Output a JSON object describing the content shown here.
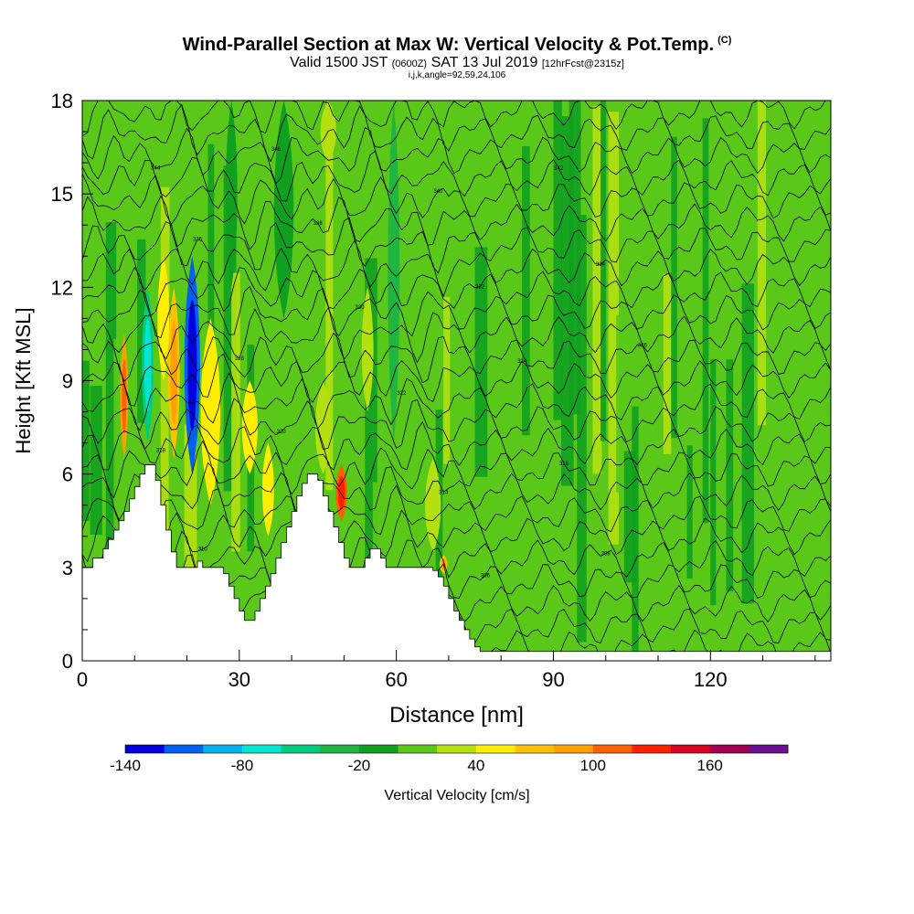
{
  "header": {
    "title": "Wind-Parallel Section at Max W: Vertical Velocity & Pot.Temp.",
    "copyright": "(C)",
    "valid_prefix": "Valid 1500 JST",
    "utc": "(0600Z)",
    "valid_date": "SAT 13 Jul 2019",
    "forecast": "[12hrFcst@2315z]",
    "params": "i,j,k,angle=92,59,24,106"
  },
  "chart_data": {
    "type": "heatmap",
    "title": "Wind-Parallel Section at Max W: Vertical Velocity & Pot.Temp.",
    "xlabel": "Distance [nm]",
    "ylabel": "Height [Kft MSL]",
    "xlim": [
      0,
      143
    ],
    "ylim": [
      0,
      18
    ],
    "x_ticks": [
      "0",
      "30",
      "60",
      "90",
      "120"
    ],
    "y_ticks": [
      "0",
      "3",
      "6",
      "9",
      "12",
      "15",
      "18"
    ],
    "terrain": {
      "x": [
        0,
        1,
        2,
        4,
        5,
        6,
        7,
        8,
        9,
        10,
        11,
        12,
        13,
        14,
        15,
        16,
        17,
        18,
        19,
        20,
        21,
        22,
        23,
        24,
        25,
        26,
        27,
        28,
        29,
        30,
        31,
        32,
        33,
        34,
        35,
        36,
        37,
        38,
        39,
        40,
        41,
        42,
        43,
        44,
        45,
        46,
        47,
        48,
        49,
        50,
        51,
        52,
        53,
        54,
        55,
        56,
        57,
        58,
        59,
        60,
        61,
        62,
        63,
        64,
        65,
        66,
        67,
        68,
        69,
        70,
        71,
        72,
        73,
        74,
        75,
        76,
        77,
        143
      ],
      "y": [
        3.0,
        3.0,
        3.3,
        3.6,
        3.9,
        4.2,
        4.5,
        4.8,
        5.2,
        5.6,
        6.0,
        6.3,
        6.3,
        5.8,
        5.0,
        4.2,
        3.5,
        3.0,
        3.0,
        3.0,
        3.0,
        3.2,
        3.0,
        3.0,
        3.0,
        3.0,
        2.8,
        2.4,
        2.0,
        1.6,
        1.3,
        1.3,
        1.6,
        2.0,
        2.4,
        2.8,
        3.3,
        3.8,
        4.3,
        4.8,
        5.3,
        5.7,
        6.0,
        6.0,
        5.8,
        5.3,
        4.8,
        4.3,
        3.8,
        3.3,
        3.0,
        3.0,
        3.0,
        3.3,
        3.6,
        3.6,
        3.3,
        3.0,
        3.0,
        3.0,
        3.0,
        3.0,
        3.0,
        3.0,
        3.0,
        3.0,
        2.9,
        2.7,
        2.4,
        2.0,
        1.6,
        1.3,
        1.0,
        0.7,
        0.45,
        0.3,
        0.3,
        0.3
      ]
    },
    "cells": [
      {
        "x": [
          7,
          9
        ],
        "y": [
          6.5,
          10.5
        ],
        "w": 80
      },
      {
        "x": [
          16,
          19
        ],
        "y": [
          6.5,
          12.0
        ],
        "w": 60
      },
      {
        "x": [
          11,
          14
        ],
        "y": [
          7.0,
          12.0
        ],
        "w": -60
      },
      {
        "x": [
          19,
          23
        ],
        "y": [
          6.0,
          13.0
        ],
        "w": -110
      },
      {
        "x": [
          22,
          27
        ],
        "y": [
          5.0,
          11.0
        ],
        "w": 50
      },
      {
        "x": [
          14,
          17
        ],
        "y": [
          9.0,
          13.0
        ],
        "w": 50
      },
      {
        "x": [
          30,
          34
        ],
        "y": [
          6.0,
          9.0
        ],
        "w": 40
      },
      {
        "x": [
          34,
          37
        ],
        "y": [
          4.0,
          7.0
        ],
        "w": 40
      },
      {
        "x": [
          44,
          48
        ],
        "y": [
          6.0,
          9.0
        ],
        "w": 30
      },
      {
        "x": [
          48,
          51
        ],
        "y": [
          4.5,
          6.3
        ],
        "w": 100
      },
      {
        "x": [
          53,
          56
        ],
        "y": [
          8.0,
          12.0
        ],
        "w": 35
      },
      {
        "x": [
          65,
          69
        ],
        "y": [
          3.5,
          6.5
        ],
        "w": 30
      },
      {
        "x": [
          68,
          70
        ],
        "y": [
          2.8,
          3.4
        ],
        "w": 70
      },
      {
        "x": [
          45,
          49
        ],
        "y": [
          16.0,
          18.0
        ],
        "w": 30
      },
      {
        "x": [
          36,
          41
        ],
        "y": [
          11.0,
          18.0
        ],
        "w": -20
      },
      {
        "x": [
          58,
          61
        ],
        "y": [
          7.0,
          18.0
        ],
        "w": -25
      },
      {
        "x": [
          27,
          30
        ],
        "y": [
          12.0,
          18.0
        ],
        "w": -20
      }
    ],
    "isentropes_k": [
      "300",
      "302",
      "304",
      "306",
      "308",
      "310",
      "312",
      "314",
      "316",
      "318",
      "320",
      "322",
      "324",
      "326",
      "328",
      "330",
      "332",
      "334",
      "336",
      "338",
      "340",
      "342",
      "344",
      "346",
      "348"
    ],
    "colorbar": {
      "label": "Vertical Velocity [cm/s]",
      "tick_labels": [
        "-140",
        "-80",
        "-20",
        "40",
        "100",
        "160"
      ],
      "bounds": [
        -140,
        -120,
        -100,
        -80,
        -60,
        -40,
        -20,
        0,
        20,
        40,
        60,
        80,
        100,
        120,
        140,
        160,
        180
      ],
      "colors": [
        "#0000e0",
        "#0060f0",
        "#00b4f0",
        "#00e4d0",
        "#00cc80",
        "#20b440",
        "#10a020",
        "#5ac818",
        "#b4e010",
        "#ffee00",
        "#ffc000",
        "#ffa000",
        "#ff6000",
        "#ff2000",
        "#dc0020",
        "#a00050",
        "#6a1090"
      ]
    }
  }
}
